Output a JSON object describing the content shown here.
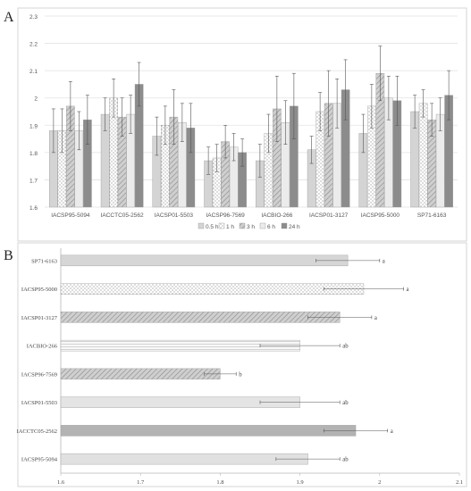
{
  "panel_labels": [
    "A",
    "B"
  ],
  "chart_data": [
    {
      "type": "bar",
      "panel": "A",
      "categories": [
        "IACSP95-5094",
        "IACCTC05-2562",
        "IACSP01-5503",
        "IACSP96-7569",
        "IACBIO-266",
        "IACSP01-3127",
        "IACSP95-5000",
        "SP71-6163"
      ],
      "yticks": [
        "1.6",
        "1.7",
        "1.8",
        "1.9",
        "2",
        "2.1",
        "2.2",
        "2.3"
      ],
      "ylim": [
        1.6,
        2.3
      ],
      "grid": true,
      "legend_position": "bottom",
      "series": [
        {
          "name": "0.5 h",
          "values": [
            1.88,
            1.94,
            1.86,
            1.77,
            1.77,
            1.81,
            1.87,
            1.95
          ],
          "errors": [
            0.08,
            0.06,
            0.07,
            0.05,
            0.06,
            0.05,
            0.07,
            0.06
          ],
          "fill": "#d4d4d4",
          "pattern": "solid"
        },
        {
          "name": "1 h",
          "values": [
            1.88,
            2.0,
            1.9,
            1.78,
            1.87,
            1.95,
            1.97,
            1.98
          ],
          "errors": [
            0.08,
            0.07,
            0.07,
            0.05,
            0.07,
            0.07,
            0.08,
            0.05
          ],
          "fill": "#ffffff",
          "pattern": "dots"
        },
        {
          "name": "3 h",
          "values": [
            1.97,
            1.93,
            1.93,
            1.84,
            1.96,
            1.98,
            2.09,
            1.92
          ],
          "errors": [
            0.09,
            0.07,
            0.1,
            0.06,
            0.12,
            0.12,
            0.1,
            0.06
          ],
          "fill": "#bdbdbd",
          "pattern": "hatch"
        },
        {
          "name": "6 h",
          "values": [
            1.88,
            1.94,
            1.91,
            1.82,
            1.91,
            1.98,
            2.0,
            1.94
          ],
          "errors": [
            0.07,
            0.07,
            0.07,
            0.05,
            0.08,
            0.09,
            0.08,
            0.06
          ],
          "fill": "#ebebeb",
          "pattern": "solid"
        },
        {
          "name": "24 h",
          "values": [
            1.92,
            2.05,
            1.89,
            1.8,
            1.97,
            2.03,
            1.99,
            2.01
          ],
          "errors": [
            0.09,
            0.08,
            0.09,
            0.05,
            0.12,
            0.11,
            0.09,
            0.09
          ],
          "fill": "#8c8c8c",
          "pattern": "solid"
        }
      ]
    },
    {
      "type": "bar",
      "orientation": "horizontal",
      "panel": "B",
      "categories": [
        "SP71-6163",
        "IACSP95-5000",
        "IACSP01-3127",
        "IACBIO-266",
        "IACSP96-7569",
        "IACSP01-5503",
        "IACCTC05-2562",
        "IACSP95-5094"
      ],
      "values": [
        1.96,
        1.98,
        1.95,
        1.9,
        1.8,
        1.9,
        1.97,
        1.91
      ],
      "errors": [
        0.04,
        0.05,
        0.04,
        0.05,
        0.02,
        0.05,
        0.04,
        0.04
      ],
      "labels": [
        "a",
        "a",
        "a",
        "ab",
        "b",
        "ab",
        "a",
        "ab"
      ],
      "fills": [
        "#d6d6d6",
        "#fafafa",
        "#c8c8c8",
        "#f4f4f4",
        "#bcbcbc",
        "#e4e4e4",
        "#b3b3b3",
        "#e1e1e1"
      ],
      "patterns": [
        "solid",
        "dots",
        "hatch",
        "lines",
        "hatch",
        "solid",
        "solid",
        "solid"
      ],
      "xticks": [
        "1.6",
        "1.7",
        "1.8",
        "1.9",
        "2",
        "2.1"
      ],
      "xlim": [
        1.6,
        2.1
      ],
      "grid": false
    }
  ]
}
